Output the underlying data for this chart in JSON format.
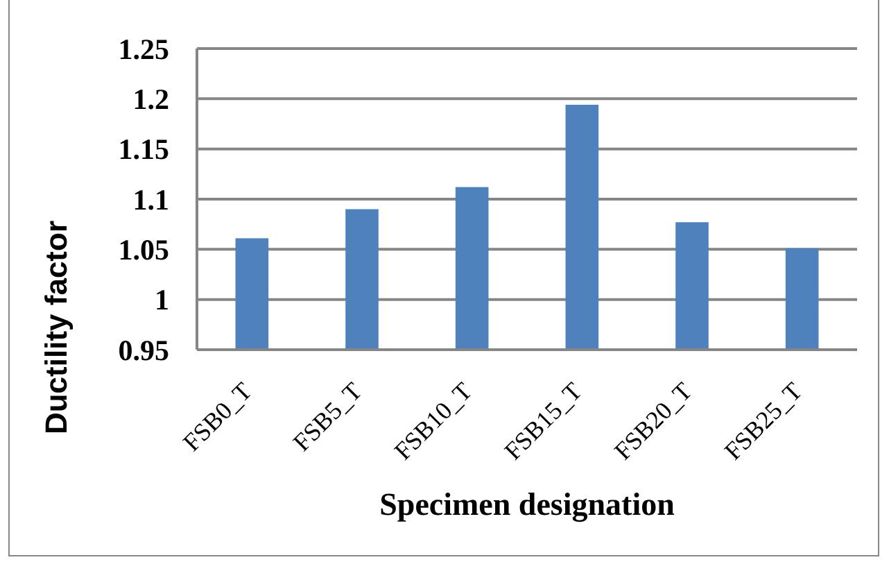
{
  "chart_data": {
    "type": "bar",
    "xlabel": "Specimen designation",
    "ylabel": "Ductility factor",
    "categories": [
      "FSB0_T",
      "FSB5_T",
      "FSB10_T",
      "FSB15_T",
      "FSB20_T",
      "FSB25_T"
    ],
    "values": [
      1.061,
      1.09,
      1.112,
      1.194,
      1.077,
      1.051
    ],
    "color": "#4f81bd",
    "ylim": [
      0.95,
      1.25
    ],
    "yticks": [
      0.95,
      1,
      1.05,
      1.1,
      1.15,
      1.2,
      1.25
    ],
    "grid": "y"
  }
}
